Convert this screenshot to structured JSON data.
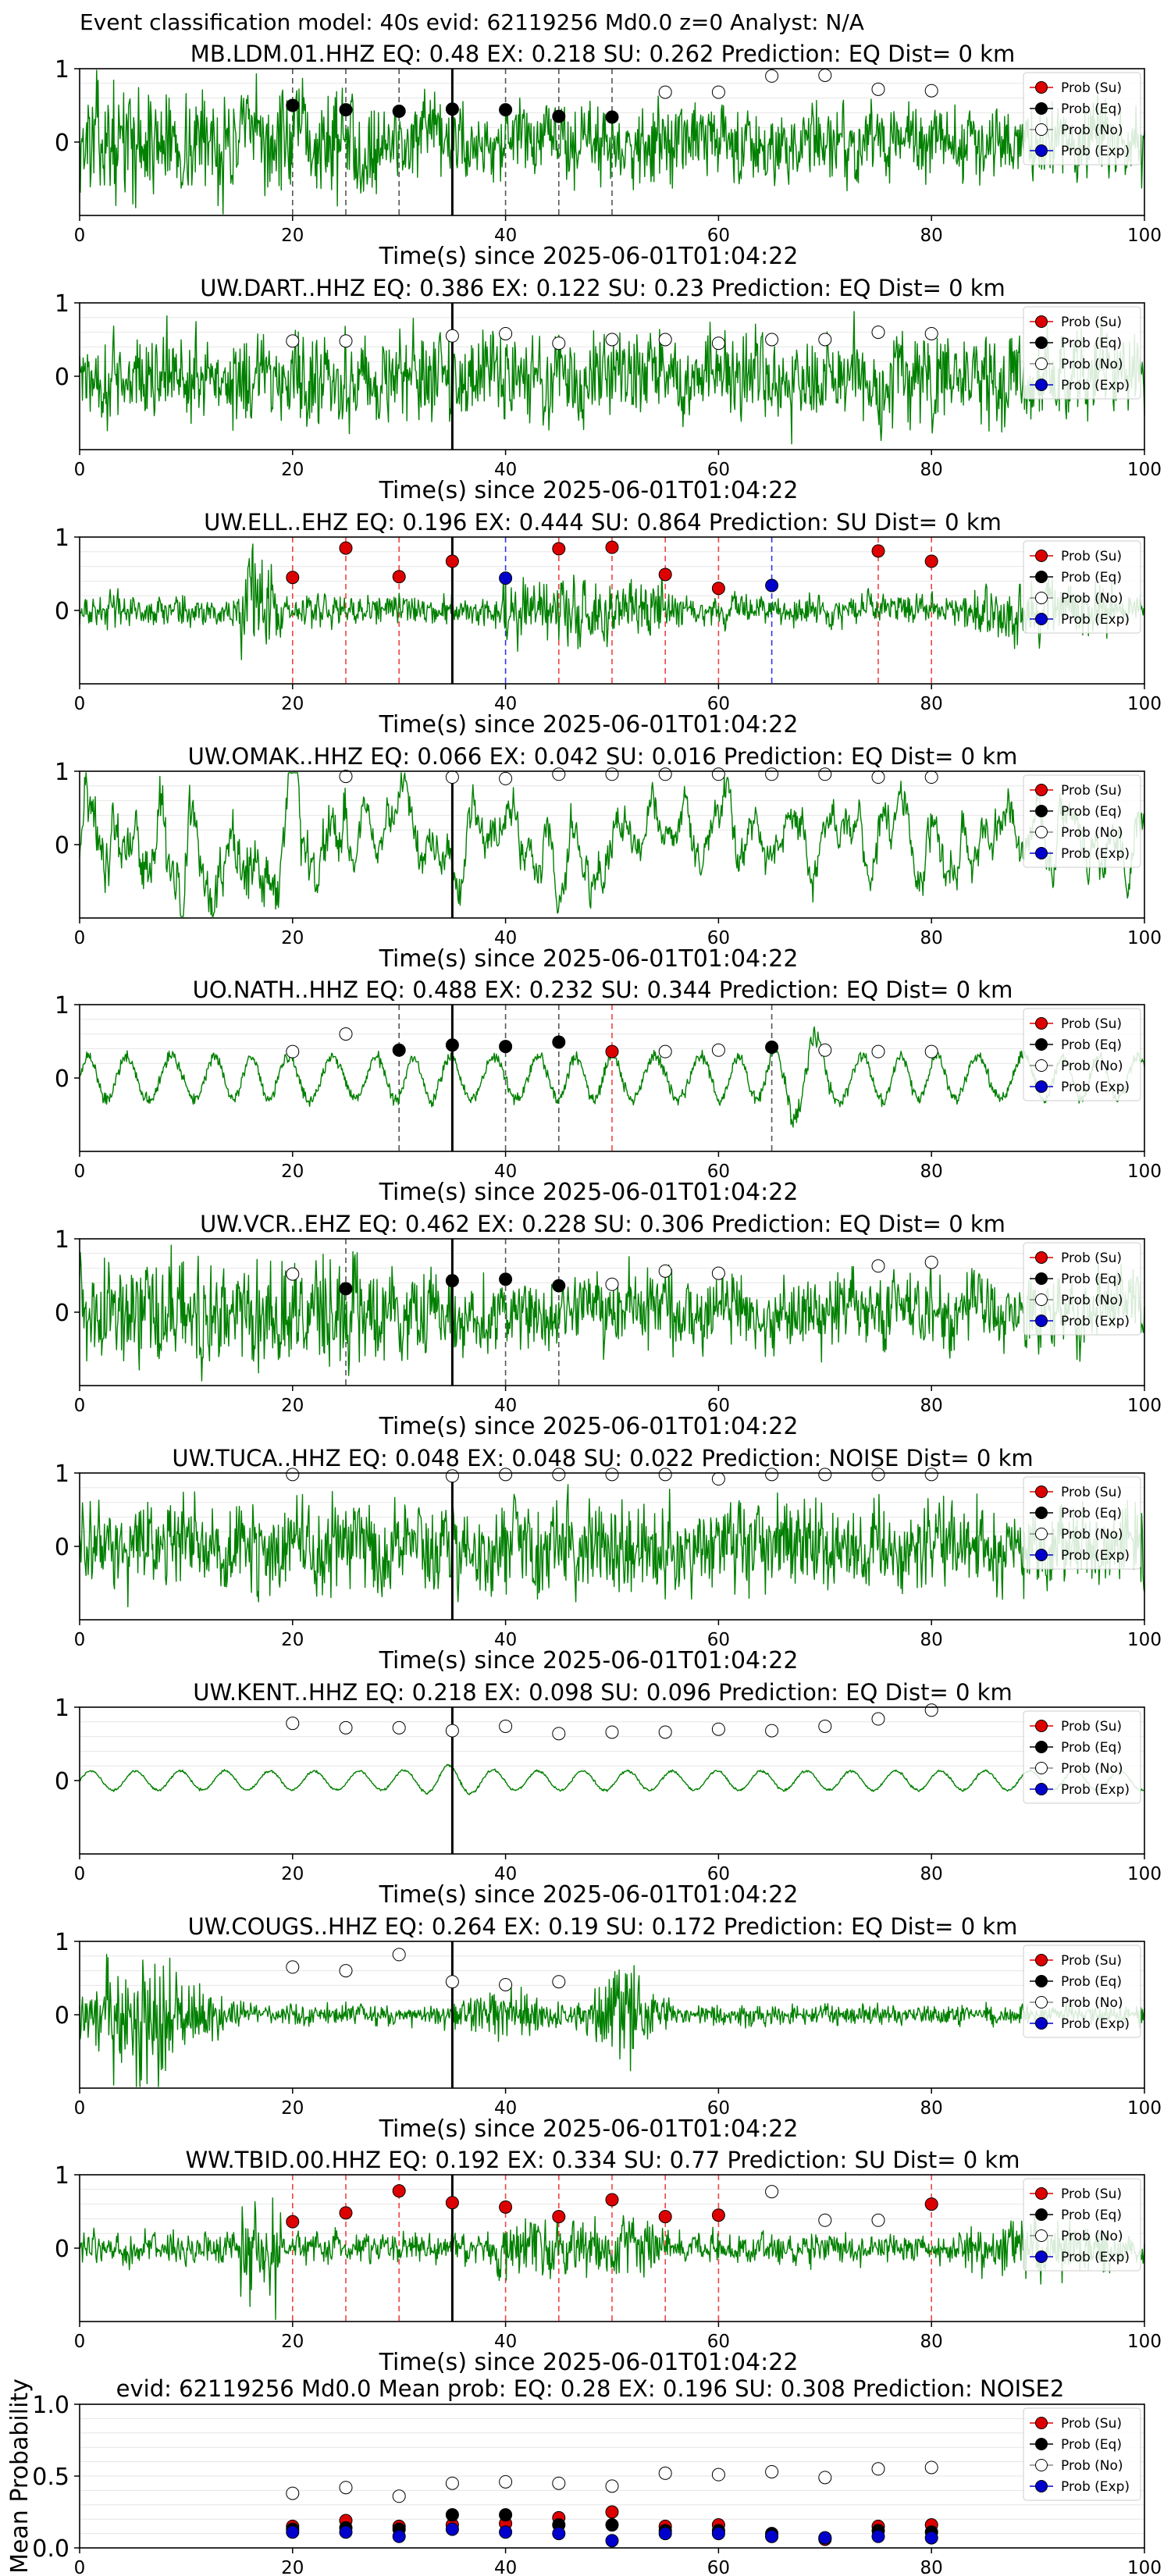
{
  "figure": {
    "title": "Event classification model: 40s evid: 62119256 Md0.0 z=0 Analyst: N/A"
  },
  "legend": [
    {
      "label": "Prob (Su)",
      "color": "#dd0000"
    },
    {
      "label": "Prob (Eq)",
      "color": "#000000"
    },
    {
      "label": "Prob (No)",
      "color": "#ffffff"
    },
    {
      "label": "Prob (Exp)",
      "color": "#0000cc"
    }
  ],
  "trace_color": "#008000",
  "chart_data": [
    {
      "type": "line",
      "title": "MB.LDM.01.HHZ    EQ: 0.48  EX: 0.218  SU: 0.262   Prediction: EQ    Dist= 0 km",
      "xlabel": "Time(s) since 2025-06-01T01:04:22",
      "xlim": [
        0,
        100
      ],
      "xticks": [
        0,
        20,
        40,
        60,
        80,
        100
      ],
      "ylim": [
        -1,
        1
      ],
      "yticks": [
        1,
        0
      ],
      "waveform_style": "broadband",
      "origin_marker_x": 35,
      "windows": [
        {
          "t": 20,
          "cls": "eq",
          "p": 0.5
        },
        {
          "t": 25,
          "cls": "eq",
          "p": 0.44
        },
        {
          "t": 30,
          "cls": "eq",
          "p": 0.42
        },
        {
          "t": 35,
          "cls": "eq",
          "p": 0.45
        },
        {
          "t": 40,
          "cls": "eq",
          "p": 0.44
        },
        {
          "t": 45,
          "cls": "eq",
          "p": 0.35
        },
        {
          "t": 50,
          "cls": "eq",
          "p": 0.34
        },
        {
          "t": 55,
          "cls": "no",
          "p": 0.68
        },
        {
          "t": 60,
          "cls": "no",
          "p": 0.68
        },
        {
          "t": 65,
          "cls": "no",
          "p": 0.9
        },
        {
          "t": 70,
          "cls": "no",
          "p": 0.91
        },
        {
          "t": 75,
          "cls": "no",
          "p": 0.72
        },
        {
          "t": 80,
          "cls": "no",
          "p": 0.7
        }
      ]
    },
    {
      "type": "line",
      "title": "UW.DART..HHZ    EQ: 0.386  EX: 0.122  SU: 0.23   Prediction: EQ    Dist= 0 km",
      "xlabel": "Time(s) since 2025-06-01T01:04:22",
      "xlim": [
        0,
        100
      ],
      "xticks": [
        0,
        20,
        40,
        60,
        80,
        100
      ],
      "ylim": [
        -1,
        1
      ],
      "yticks": [
        1,
        0
      ],
      "waveform_style": "dense",
      "origin_marker_x": 35,
      "windows": [
        {
          "t": 20,
          "cls": "no",
          "p": 0.48
        },
        {
          "t": 25,
          "cls": "no",
          "p": 0.48
        },
        {
          "t": 35,
          "cls": "no",
          "p": 0.55
        },
        {
          "t": 40,
          "cls": "no",
          "p": 0.58
        },
        {
          "t": 45,
          "cls": "no",
          "p": 0.45
        },
        {
          "t": 50,
          "cls": "no",
          "p": 0.5
        },
        {
          "t": 55,
          "cls": "no",
          "p": 0.5
        },
        {
          "t": 60,
          "cls": "no",
          "p": 0.45
        },
        {
          "t": 65,
          "cls": "no",
          "p": 0.5
        },
        {
          "t": 70,
          "cls": "no",
          "p": 0.5
        },
        {
          "t": 75,
          "cls": "no",
          "p": 0.6
        },
        {
          "t": 80,
          "cls": "no",
          "p": 0.58
        }
      ]
    },
    {
      "type": "line",
      "title": "UW.ELL..EHZ    EQ: 0.196  EX: 0.444  SU: 0.864   Prediction: SU    Dist= 0 km",
      "xlabel": "Time(s) since 2025-06-01T01:04:22",
      "xlim": [
        0,
        100
      ],
      "xticks": [
        0,
        20,
        40,
        60,
        80,
        100
      ],
      "ylim": [
        -1,
        1
      ],
      "yticks": [
        1,
        0
      ],
      "waveform_style": "spiky",
      "origin_marker_x": 35,
      "windows": [
        {
          "t": 20,
          "cls": "su",
          "p": 0.45
        },
        {
          "t": 25,
          "cls": "su",
          "p": 0.85
        },
        {
          "t": 30,
          "cls": "su",
          "p": 0.46
        },
        {
          "t": 35,
          "cls": "su",
          "p": 0.67
        },
        {
          "t": 40,
          "cls": "exp",
          "p": 0.44
        },
        {
          "t": 45,
          "cls": "su",
          "p": 0.84
        },
        {
          "t": 50,
          "cls": "su",
          "p": 0.86
        },
        {
          "t": 55,
          "cls": "su",
          "p": 0.49
        },
        {
          "t": 60,
          "cls": "su",
          "p": 0.3
        },
        {
          "t": 65,
          "cls": "exp",
          "p": 0.34
        },
        {
          "t": 75,
          "cls": "su",
          "p": 0.81
        },
        {
          "t": 80,
          "cls": "su",
          "p": 0.67
        }
      ]
    },
    {
      "type": "line",
      "title": "UW.OMAK..HHZ    EQ: 0.066  EX: 0.042  SU: 0.016   Prediction: EQ    Dist= 0 km",
      "xlabel": "Time(s) since 2025-06-01T01:04:22",
      "xlim": [
        0,
        100
      ],
      "xticks": [
        0,
        20,
        40,
        60,
        80,
        100
      ],
      "ylim": [
        -1,
        1
      ],
      "yticks": [
        1,
        0
      ],
      "waveform_style": "lowfreq",
      "origin_marker_x": 35,
      "windows": [
        {
          "t": 25,
          "cls": "no",
          "p": 0.93
        },
        {
          "t": 35,
          "cls": "no",
          "p": 0.92
        },
        {
          "t": 40,
          "cls": "no",
          "p": 0.9
        },
        {
          "t": 45,
          "cls": "no",
          "p": 0.96
        },
        {
          "t": 50,
          "cls": "no",
          "p": 0.96
        },
        {
          "t": 55,
          "cls": "no",
          "p": 0.96
        },
        {
          "t": 60,
          "cls": "no",
          "p": 0.96
        },
        {
          "t": 65,
          "cls": "no",
          "p": 0.96
        },
        {
          "t": 70,
          "cls": "no",
          "p": 0.96
        },
        {
          "t": 75,
          "cls": "no",
          "p": 0.92
        },
        {
          "t": 80,
          "cls": "no",
          "p": 0.92
        }
      ]
    },
    {
      "type": "line",
      "title": "UO.NATH..HHZ    EQ: 0.488  EX: 0.232  SU: 0.344   Prediction: EQ    Dist= 0 km",
      "xlabel": "Time(s) since 2025-06-01T01:04:22",
      "xlim": [
        0,
        100
      ],
      "xticks": [
        0,
        20,
        40,
        60,
        80,
        100
      ],
      "ylim": [
        -1,
        1
      ],
      "yticks": [
        1,
        0
      ],
      "waveform_style": "oscill",
      "origin_marker_x": 35,
      "windows": [
        {
          "t": 20,
          "cls": "no",
          "p": 0.36
        },
        {
          "t": 25,
          "cls": "no",
          "p": 0.6
        },
        {
          "t": 30,
          "cls": "eq",
          "p": 0.38
        },
        {
          "t": 35,
          "cls": "eq",
          "p": 0.45
        },
        {
          "t": 40,
          "cls": "eq",
          "p": 0.43
        },
        {
          "t": 45,
          "cls": "eq",
          "p": 0.49
        },
        {
          "t": 50,
          "cls": "su",
          "p": 0.36
        },
        {
          "t": 55,
          "cls": "no",
          "p": 0.36
        },
        {
          "t": 60,
          "cls": "no",
          "p": 0.38
        },
        {
          "t": 65,
          "cls": "eq",
          "p": 0.42
        },
        {
          "t": 70,
          "cls": "no",
          "p": 0.38
        },
        {
          "t": 75,
          "cls": "no",
          "p": 0.36
        },
        {
          "t": 80,
          "cls": "no",
          "p": 0.36
        }
      ]
    },
    {
      "type": "line",
      "title": "UW.VCR..EHZ    EQ: 0.462  EX: 0.228  SU: 0.306   Prediction: EQ    Dist= 0 km",
      "xlabel": "Time(s) since 2025-06-01T01:04:22",
      "xlim": [
        0,
        100
      ],
      "xticks": [
        0,
        20,
        40,
        60,
        80,
        100
      ],
      "ylim": [
        -1,
        1
      ],
      "yticks": [
        1,
        0
      ],
      "waveform_style": "broadband",
      "origin_marker_x": 35,
      "windows": [
        {
          "t": 20,
          "cls": "no",
          "p": 0.52
        },
        {
          "t": 25,
          "cls": "eq",
          "p": 0.32
        },
        {
          "t": 35,
          "cls": "eq",
          "p": 0.43
        },
        {
          "t": 40,
          "cls": "eq",
          "p": 0.45
        },
        {
          "t": 45,
          "cls": "eq",
          "p": 0.36
        },
        {
          "t": 50,
          "cls": "no",
          "p": 0.38
        },
        {
          "t": 55,
          "cls": "no",
          "p": 0.56
        },
        {
          "t": 60,
          "cls": "no",
          "p": 0.53
        },
        {
          "t": 75,
          "cls": "no",
          "p": 0.63
        },
        {
          "t": 80,
          "cls": "no",
          "p": 0.68
        }
      ]
    },
    {
      "type": "line",
      "title": "UW.TUCA..HHZ    EQ: 0.048  EX: 0.048  SU: 0.022   Prediction: NOISE    Dist= 0 km",
      "xlabel": "Time(s) since 2025-06-01T01:04:22",
      "xlim": [
        0,
        100
      ],
      "xticks": [
        0,
        20,
        40,
        60,
        80,
        100
      ],
      "ylim": [
        -1,
        1
      ],
      "yticks": [
        1,
        0
      ],
      "waveform_style": "dense",
      "origin_marker_x": 35,
      "windows": [
        {
          "t": 20,
          "cls": "no",
          "p": 0.98
        },
        {
          "t": 35,
          "cls": "no",
          "p": 0.96
        },
        {
          "t": 40,
          "cls": "no",
          "p": 0.98
        },
        {
          "t": 45,
          "cls": "no",
          "p": 0.98
        },
        {
          "t": 50,
          "cls": "no",
          "p": 0.98
        },
        {
          "t": 55,
          "cls": "no",
          "p": 0.98
        },
        {
          "t": 60,
          "cls": "no",
          "p": 0.92
        },
        {
          "t": 65,
          "cls": "no",
          "p": 0.98
        },
        {
          "t": 70,
          "cls": "no",
          "p": 0.98
        },
        {
          "t": 75,
          "cls": "no",
          "p": 0.98
        },
        {
          "t": 80,
          "cls": "no",
          "p": 0.98
        }
      ]
    },
    {
      "type": "line",
      "title": "UW.KENT..HHZ    EQ: 0.218  EX: 0.098  SU: 0.096   Prediction: EQ    Dist= 0 km",
      "xlabel": "Time(s) since 2025-06-01T01:04:22",
      "xlim": [
        0,
        100
      ],
      "xticks": [
        0,
        20,
        40,
        60,
        80,
        100
      ],
      "ylim": [
        -1,
        1
      ],
      "yticks": [
        1,
        0
      ],
      "waveform_style": "smooth",
      "origin_marker_x": 35,
      "windows": [
        {
          "t": 20,
          "cls": "no",
          "p": 0.78
        },
        {
          "t": 25,
          "cls": "no",
          "p": 0.72
        },
        {
          "t": 30,
          "cls": "no",
          "p": 0.72
        },
        {
          "t": 35,
          "cls": "no",
          "p": 0.68
        },
        {
          "t": 40,
          "cls": "no",
          "p": 0.74
        },
        {
          "t": 45,
          "cls": "no",
          "p": 0.64
        },
        {
          "t": 50,
          "cls": "no",
          "p": 0.66
        },
        {
          "t": 55,
          "cls": "no",
          "p": 0.66
        },
        {
          "t": 60,
          "cls": "no",
          "p": 0.7
        },
        {
          "t": 65,
          "cls": "no",
          "p": 0.68
        },
        {
          "t": 70,
          "cls": "no",
          "p": 0.74
        },
        {
          "t": 75,
          "cls": "no",
          "p": 0.84
        },
        {
          "t": 80,
          "cls": "no",
          "p": 0.96
        }
      ]
    },
    {
      "type": "line",
      "title": "UW.COUGS..HHZ    EQ: 0.264  EX: 0.19  SU: 0.172   Prediction: EQ    Dist= 0 km",
      "xlabel": "Time(s) since 2025-06-01T01:04:22",
      "xlim": [
        0,
        100
      ],
      "xticks": [
        0,
        20,
        40,
        60,
        80,
        100
      ],
      "ylim": [
        -1,
        1
      ],
      "yticks": [
        1,
        0
      ],
      "waveform_style": "bursts",
      "origin_marker_x": 35,
      "windows": [
        {
          "t": 20,
          "cls": "no",
          "p": 0.65
        },
        {
          "t": 25,
          "cls": "no",
          "p": 0.6
        },
        {
          "t": 30,
          "cls": "no",
          "p": 0.82
        },
        {
          "t": 35,
          "cls": "no",
          "p": 0.45
        },
        {
          "t": 40,
          "cls": "no",
          "p": 0.41
        },
        {
          "t": 45,
          "cls": "no",
          "p": 0.45
        }
      ]
    },
    {
      "type": "line",
      "title": "WW.TBID.00.HHZ    EQ: 0.192  EX: 0.334  SU: 0.77   Prediction: SU    Dist= 0 km",
      "xlabel": "Time(s) since 2025-06-01T01:04:22",
      "xlim": [
        0,
        100
      ],
      "xticks": [
        0,
        20,
        40,
        60,
        80,
        100
      ],
      "ylim": [
        -1,
        1
      ],
      "yticks": [
        1,
        0
      ],
      "waveform_style": "spiky",
      "origin_marker_x": 35,
      "windows": [
        {
          "t": 20,
          "cls": "su",
          "p": 0.36
        },
        {
          "t": 25,
          "cls": "su",
          "p": 0.48
        },
        {
          "t": 30,
          "cls": "su",
          "p": 0.78
        },
        {
          "t": 35,
          "cls": "su",
          "p": 0.62
        },
        {
          "t": 40,
          "cls": "su",
          "p": 0.56
        },
        {
          "t": 45,
          "cls": "su",
          "p": 0.43
        },
        {
          "t": 50,
          "cls": "su",
          "p": 0.66
        },
        {
          "t": 55,
          "cls": "su",
          "p": 0.43
        },
        {
          "t": 60,
          "cls": "su",
          "p": 0.45
        },
        {
          "t": 65,
          "cls": "no",
          "p": 0.77
        },
        {
          "t": 70,
          "cls": "no",
          "p": 0.38
        },
        {
          "t": 75,
          "cls": "no",
          "p": 0.38
        },
        {
          "t": 80,
          "cls": "su",
          "p": 0.6
        }
      ]
    },
    {
      "type": "scatter",
      "title": "evid: 62119256  Md0.0   Mean prob:   EQ: 0.28  EX: 0.196  SU: 0.308   Prediction: NOISE2",
      "ylabel": "Mean Probability",
      "xlim": [
        0,
        100
      ],
      "xticks": [
        0,
        20,
        40,
        60,
        80,
        100
      ],
      "ylim": [
        0,
        1
      ],
      "yticks": [
        "0.0",
        "0.5",
        "1.0"
      ],
      "series": [
        {
          "name": "Prob (Su)",
          "cls": "su",
          "x": [
            20,
            25,
            30,
            35,
            40,
            45,
            50,
            55,
            60,
            65,
            70,
            75,
            80
          ],
          "y": [
            0.15,
            0.19,
            0.15,
            0.16,
            0.17,
            0.21,
            0.25,
            0.15,
            0.16,
            0.08,
            0.06,
            0.15,
            0.16
          ]
        },
        {
          "name": "Prob (Eq)",
          "cls": "eq",
          "x": [
            20,
            25,
            30,
            35,
            40,
            45,
            50,
            55,
            60,
            65,
            70,
            75,
            80
          ],
          "y": [
            0.13,
            0.14,
            0.13,
            0.23,
            0.23,
            0.16,
            0.16,
            0.12,
            0.12,
            0.1,
            0.07,
            0.12,
            0.11
          ]
        },
        {
          "name": "Prob (No)",
          "cls": "no",
          "x": [
            20,
            25,
            30,
            35,
            40,
            45,
            50,
            55,
            60,
            65,
            70,
            75,
            80
          ],
          "y": [
            0.38,
            0.42,
            0.36,
            0.45,
            0.46,
            0.45,
            0.43,
            0.52,
            0.51,
            0.53,
            0.49,
            0.55,
            0.56
          ]
        },
        {
          "name": "Prob (Exp)",
          "cls": "exp",
          "x": [
            20,
            25,
            30,
            35,
            40,
            45,
            50,
            55,
            60,
            65,
            70,
            75,
            80
          ],
          "y": [
            0.11,
            0.11,
            0.08,
            0.13,
            0.11,
            0.1,
            0.05,
            0.1,
            0.1,
            0.08,
            0.07,
            0.08,
            0.07
          ]
        }
      ]
    }
  ]
}
